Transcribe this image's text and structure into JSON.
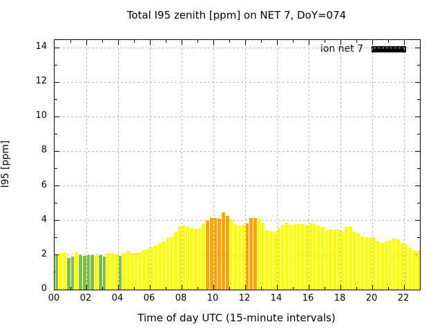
{
  "chart_data": {
    "type": "bar",
    "title": "Total I95 zenith [ppm] on NET 7, DoY=074",
    "xlabel": "Time of day UTC (15-minute intervals)",
    "ylabel": "I95 [ppm]",
    "legend": [
      {
        "label": "ion net 7",
        "color": "#000000"
      }
    ],
    "grid": true,
    "legend_position": "top-right-inside",
    "x_start": "00:00",
    "interval_minutes": 15,
    "xlim_hours": [
      0,
      23
    ],
    "ylim": [
      0,
      14.44
    ],
    "y_ticks": [
      "0",
      "2",
      "4",
      "6",
      "8",
      "10",
      "12",
      "14"
    ],
    "y_tick_values": [
      0,
      2,
      4,
      6,
      8,
      10,
      12,
      14
    ],
    "x_ticks": [
      "00",
      "02",
      "04",
      "06",
      "08",
      "10",
      "12",
      "14",
      "16",
      "18",
      "20",
      "22"
    ],
    "x_tick_hours": [
      0,
      2,
      4,
      6,
      8,
      10,
      12,
      14,
      16,
      18,
      20,
      22
    ],
    "color_key": {
      "g": "#7dc242",
      "y": "#ffff00",
      "o": "#ffa500"
    },
    "series": [
      {
        "name": "ion net 7",
        "values": [
          2.0,
          2.11,
          2.15,
          1.82,
          1.93,
          2.15,
          1.99,
          1.95,
          2.0,
          2.0,
          1.95,
          2.0,
          1.93,
          2.11,
          2.11,
          2.07,
          1.95,
          2.11,
          2.23,
          2.11,
          2.11,
          2.15,
          2.27,
          2.35,
          2.47,
          2.55,
          2.71,
          2.79,
          2.99,
          3.03,
          3.35,
          3.63,
          3.71,
          3.63,
          3.55,
          3.51,
          3.55,
          3.83,
          3.98,
          4.16,
          4.16,
          4.1,
          4.46,
          4.28,
          4.08,
          3.79,
          3.71,
          3.75,
          3.84,
          4.15,
          4.15,
          4.11,
          3.88,
          3.42,
          3.39,
          3.31,
          3.55,
          3.75,
          3.86,
          3.75,
          3.79,
          3.79,
          3.79,
          3.75,
          3.83,
          3.79,
          3.71,
          3.63,
          3.43,
          3.47,
          3.47,
          3.47,
          3.39,
          3.63,
          3.67,
          3.35,
          3.27,
          3.07,
          3.03,
          3.03,
          3.03,
          2.79,
          2.71,
          2.79,
          2.83,
          2.95,
          2.91,
          2.71,
          2.63,
          2.43,
          2.27,
          2.23
        ],
        "colors": "gyyggyggggyggyyygyyyyyyyyyyyyyyyyyyyyyooooooyyyyooo yyyyyyyyyyyyyyyyyyyyyyyyyyyyyyyyyyyyyyyy"
      }
    ]
  }
}
